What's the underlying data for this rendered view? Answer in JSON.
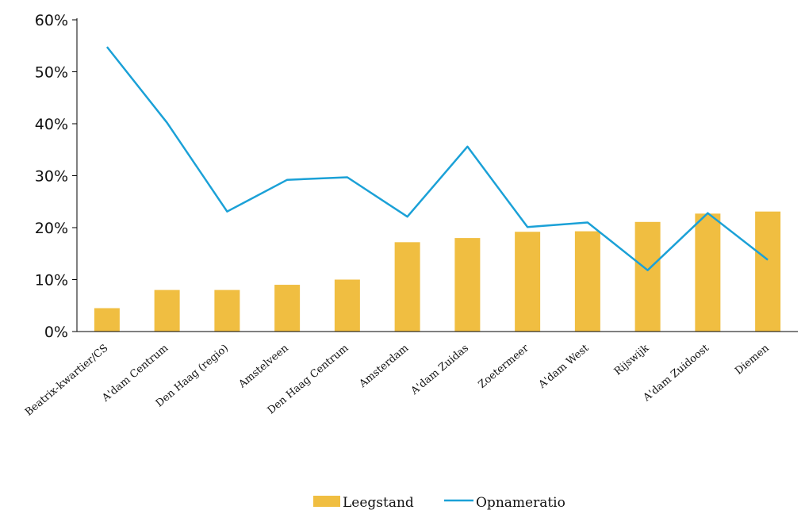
{
  "chart_data": {
    "type": "bar",
    "categories": [
      "Beatrix-kwartier/CS",
      "A'dam Centrum",
      "Den Haag (regio)",
      "Amstelveen",
      "Den Haag Centrum",
      "Amsterdam",
      "A'dam Zuidas",
      "Zoetermeer",
      "A'dam West",
      "Rijswijk",
      "A'dam Zuidoost",
      "Diemen"
    ],
    "series": [
      {
        "name": "Leegstand",
        "type": "bar",
        "color": "#F0BE41",
        "values": [
          4.5,
          8.0,
          8.0,
          9.0,
          10.0,
          17.2,
          18.0,
          19.2,
          19.3,
          21.1,
          22.7,
          23.1
        ]
      },
      {
        "name": "Opnameratio",
        "type": "line",
        "color": "#1BA1D7",
        "values": [
          54.8,
          40.2,
          23.1,
          29.2,
          29.7,
          22.1,
          35.6,
          20.1,
          21.0,
          11.8,
          22.8,
          13.8
        ]
      }
    ],
    "yticks": [
      "0%",
      "10%",
      "20%",
      "30%",
      "40%",
      "50%",
      "60%"
    ],
    "ylim": [
      0,
      60
    ],
    "legend": "bottom-center"
  }
}
